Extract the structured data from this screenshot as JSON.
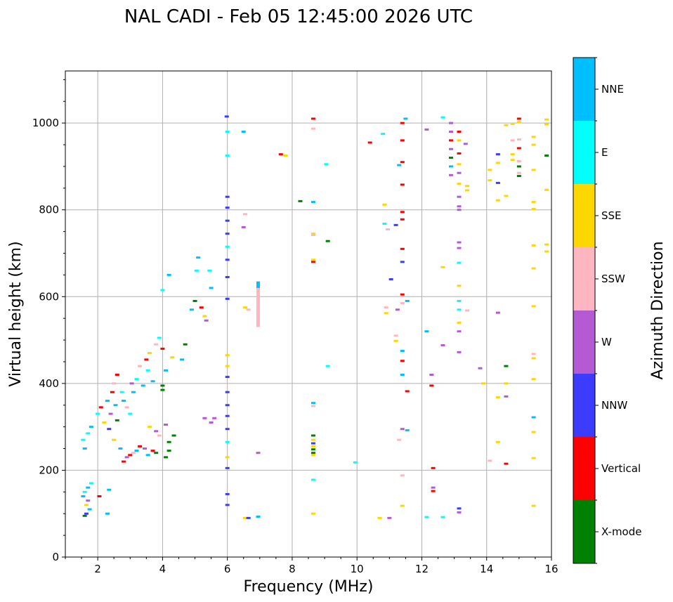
{
  "chart_data": {
    "type": "scatter",
    "title": "NAL CADI - Feb 05 12:45:00 2026 UTC",
    "xlabel": "Frequency (MHz)",
    "ylabel": "Virtual height (km)",
    "xlim": [
      1,
      16
    ],
    "ylim": [
      0,
      1120
    ],
    "x_ticks": [
      "2",
      "4",
      "6",
      "8",
      "10",
      "12",
      "14",
      "16"
    ],
    "y_ticks": [
      "0",
      "200",
      "400",
      "600",
      "800",
      "1000"
    ],
    "grid": true,
    "colorbar": {
      "label": "Azimuth Direction",
      "categories": [
        {
          "name": "X-mode",
          "color": "#008000"
        },
        {
          "name": "Vertical",
          "color": "#ff0000"
        },
        {
          "name": "NNW",
          "color": "#3c3cff"
        },
        {
          "name": "W",
          "color": "#b45ad2"
        },
        {
          "name": "SSW",
          "color": "#ffb6c1"
        },
        {
          "name": "SSE",
          "color": "#ffd700"
        },
        {
          "name": "E",
          "color": "#00ffff"
        },
        {
          "name": "NNE",
          "color": "#00bfff"
        }
      ]
    },
    "points": [
      [
        1.55,
        140,
        "NNE"
      ],
      [
        1.6,
        150,
        "E"
      ],
      [
        1.65,
        120,
        "SSE"
      ],
      [
        1.7,
        160,
        "NNE"
      ],
      [
        1.6,
        95,
        "X-mode"
      ],
      [
        1.75,
        110,
        "NNE"
      ],
      [
        1.8,
        170,
        "E"
      ],
      [
        1.7,
        130,
        "W"
      ],
      [
        1.65,
        100,
        "NNW"
      ],
      [
        1.55,
        270,
        "E"
      ],
      [
        1.6,
        250,
        "NNE"
      ],
      [
        1.7,
        285,
        "E"
      ],
      [
        1.8,
        300,
        "NNE"
      ],
      [
        2.05,
        140,
        "Vertical"
      ],
      [
        2.3,
        100,
        "NNE"
      ],
      [
        2.35,
        155,
        "NNE"
      ],
      [
        2.0,
        330,
        "E"
      ],
      [
        2.1,
        345,
        "Vertical"
      ],
      [
        2.2,
        310,
        "SSE"
      ],
      [
        2.3,
        360,
        "NNE"
      ],
      [
        2.35,
        295,
        "NNW"
      ],
      [
        2.4,
        330,
        "W"
      ],
      [
        2.45,
        380,
        "Vertical"
      ],
      [
        2.5,
        400,
        "SSW"
      ],
      [
        2.55,
        350,
        "NNE"
      ],
      [
        2.6,
        420,
        "Vertical"
      ],
      [
        2.6,
        315,
        "X-mode"
      ],
      [
        2.5,
        270,
        "SSE"
      ],
      [
        2.7,
        250,
        "NNE"
      ],
      [
        2.75,
        380,
        "E"
      ],
      [
        2.8,
        360,
        "NNE"
      ],
      [
        2.9,
        345,
        "SSW"
      ],
      [
        3.0,
        330,
        "E"
      ],
      [
        3.05,
        400,
        "W"
      ],
      [
        3.1,
        380,
        "NNE"
      ],
      [
        3.2,
        410,
        "E"
      ],
      [
        3.3,
        440,
        "SSW"
      ],
      [
        3.4,
        395,
        "NNE"
      ],
      [
        3.5,
        455,
        "Vertical"
      ],
      [
        3.55,
        430,
        "E"
      ],
      [
        3.6,
        470,
        "SSE"
      ],
      [
        3.7,
        405,
        "NNE"
      ],
      [
        3.8,
        490,
        "SSW"
      ],
      [
        3.9,
        505,
        "E"
      ],
      [
        4.0,
        480,
        "Vertical"
      ],
      [
        4.1,
        430,
        "NNE"
      ],
      [
        4.3,
        460,
        "SSE"
      ],
      [
        2.8,
        220,
        "Vertical"
      ],
      [
        2.9,
        230,
        "W"
      ],
      [
        3.0,
        235,
        "Vertical"
      ],
      [
        3.1,
        240,
        "SSW"
      ],
      [
        3.2,
        245,
        "NNE"
      ],
      [
        3.3,
        255,
        "Vertical"
      ],
      [
        3.45,
        250,
        "W"
      ],
      [
        3.55,
        235,
        "NNE"
      ],
      [
        3.7,
        245,
        "Vertical"
      ],
      [
        3.8,
        240,
        "X-mode"
      ],
      [
        4.1,
        230,
        "X-mode"
      ],
      [
        4.2,
        245,
        "X-mode"
      ],
      [
        4.0,
        385,
        "X-mode"
      ],
      [
        4.0,
        395,
        "X-mode"
      ],
      [
        3.8,
        290,
        "W"
      ],
      [
        3.6,
        300,
        "SSE"
      ],
      [
        3.9,
        280,
        "SSW"
      ],
      [
        4.1,
        305,
        "W"
      ],
      [
        4.35,
        280,
        "X-mode"
      ],
      [
        4.2,
        265,
        "X-mode"
      ],
      [
        4.6,
        455,
        "NNE"
      ],
      [
        4.7,
        490,
        "X-mode"
      ],
      [
        4.9,
        570,
        "NNE"
      ],
      [
        5.0,
        590,
        "X-mode"
      ],
      [
        5.05,
        660,
        "E"
      ],
      [
        5.1,
        690,
        "NNE"
      ],
      [
        5.2,
        575,
        "Vertical"
      ],
      [
        5.3,
        555,
        "SSE"
      ],
      [
        5.35,
        545,
        "W"
      ],
      [
        5.5,
        620,
        "NNE"
      ],
      [
        5.45,
        660,
        "E"
      ],
      [
        5.3,
        320,
        "W"
      ],
      [
        5.5,
        310,
        "W"
      ],
      [
        5.6,
        320,
        "W"
      ],
      [
        4.2,
        650,
        "NNE"
      ],
      [
        4.0,
        615,
        "E"
      ],
      [
        5.98,
        1015,
        "NNW"
      ],
      [
        6.0,
        980,
        "E"
      ],
      [
        6.0,
        925,
        "E"
      ],
      [
        6.0,
        830,
        "NNW"
      ],
      [
        6.0,
        805,
        "NNW"
      ],
      [
        6.0,
        775,
        "NNW"
      ],
      [
        6.0,
        745,
        "NNW"
      ],
      [
        6.0,
        715,
        "E"
      ],
      [
        6.0,
        685,
        "NNW"
      ],
      [
        6.0,
        645,
        "NNW"
      ],
      [
        6.0,
        595,
        "NNW"
      ],
      [
        6.0,
        465,
        "SSE"
      ],
      [
        6.0,
        440,
        "SSE"
      ],
      [
        6.0,
        415,
        "NNW"
      ],
      [
        6.0,
        380,
        "NNW"
      ],
      [
        6.0,
        350,
        "NNW"
      ],
      [
        6.0,
        325,
        "NNW"
      ],
      [
        6.0,
        295,
        "NNW"
      ],
      [
        6.0,
        265,
        "E"
      ],
      [
        6.0,
        230,
        "SSE"
      ],
      [
        6.0,
        205,
        "NNW"
      ],
      [
        6.0,
        145,
        "NNW"
      ],
      [
        6.0,
        120,
        "NNW"
      ],
      [
        6.5,
        980,
        "NNE"
      ],
      [
        6.55,
        790,
        "SSW"
      ],
      [
        6.5,
        760,
        "W"
      ],
      [
        6.55,
        575,
        "SSE"
      ],
      [
        6.65,
        570,
        "SSW"
      ],
      [
        6.55,
        90,
        "SSE"
      ],
      [
        6.65,
        90,
        "NNW"
      ],
      [
        6.95,
        240,
        "W"
      ],
      [
        6.95,
        93,
        "NNE"
      ],
      [
        7.65,
        928,
        "Vertical"
      ],
      [
        7.8,
        925,
        "SSE"
      ],
      [
        8.25,
        820,
        "X-mode"
      ],
      [
        8.65,
        1010,
        "Vertical"
      ],
      [
        8.65,
        987,
        "SSW"
      ],
      [
        8.65,
        818,
        "NNE"
      ],
      [
        8.65,
        745,
        "SSE"
      ],
      [
        8.65,
        742,
        "SSW"
      ],
      [
        8.65,
        685,
        "SSE"
      ],
      [
        8.65,
        680,
        "Vertical"
      ],
      [
        8.65,
        355,
        "NNE"
      ],
      [
        8.65,
        348,
        "SSW"
      ],
      [
        8.65,
        280,
        "X-mode"
      ],
      [
        8.65,
        270,
        "SSE"
      ],
      [
        8.65,
        262,
        "NNW"
      ],
      [
        8.65,
        255,
        "SSE"
      ],
      [
        8.65,
        248,
        "X-mode"
      ],
      [
        8.65,
        240,
        "X-mode"
      ],
      [
        8.65,
        235,
        "SSE"
      ],
      [
        8.65,
        178,
        "E"
      ],
      [
        8.65,
        100,
        "SSE"
      ],
      [
        9.05,
        905,
        "E"
      ],
      [
        9.1,
        728,
        "X-mode"
      ],
      [
        9.1,
        440,
        "E"
      ],
      [
        9.95,
        218,
        "E"
      ],
      [
        10.4,
        955,
        "Vertical"
      ],
      [
        10.8,
        975,
        "E"
      ],
      [
        10.85,
        812,
        "SSE"
      ],
      [
        10.85,
        768,
        "E"
      ],
      [
        10.95,
        755,
        "SSW"
      ],
      [
        10.9,
        575,
        "SSW"
      ],
      [
        10.9,
        562,
        "SSE"
      ],
      [
        11.05,
        640,
        "NNW"
      ],
      [
        11.2,
        765,
        "NNW"
      ],
      [
        11.2,
        498,
        "SSE"
      ],
      [
        11.3,
        903,
        "NNE"
      ],
      [
        11.4,
        1000,
        "Vertical"
      ],
      [
        11.4,
        960,
        "Vertical"
      ],
      [
        11.4,
        910,
        "Vertical"
      ],
      [
        11.4,
        858,
        "Vertical"
      ],
      [
        11.4,
        795,
        "Vertical"
      ],
      [
        11.4,
        778,
        "Vertical"
      ],
      [
        11.4,
        710,
        "Vertical"
      ],
      [
        11.4,
        680,
        "NNW"
      ],
      [
        11.4,
        605,
        "Vertical"
      ],
      [
        11.4,
        585,
        "SSW"
      ],
      [
        11.4,
        475,
        "NNE"
      ],
      [
        11.4,
        452,
        "Vertical"
      ],
      [
        11.4,
        420,
        "NNE"
      ],
      [
        11.4,
        295,
        "W"
      ],
      [
        11.4,
        188,
        "SSW"
      ],
      [
        11.4,
        118,
        "SSE"
      ],
      [
        11.25,
        570,
        "W"
      ],
      [
        11.2,
        510,
        "SSW"
      ],
      [
        10.7,
        90,
        "SSE"
      ],
      [
        11.0,
        90,
        "W"
      ],
      [
        11.5,
        1010,
        "NNE"
      ],
      [
        11.55,
        590,
        "NNE"
      ],
      [
        11.55,
        382,
        "Vertical"
      ],
      [
        11.55,
        292,
        "NNE"
      ],
      [
        11.3,
        270,
        "SSW"
      ],
      [
        12.15,
        985,
        "W"
      ],
      [
        12.15,
        520,
        "NNE"
      ],
      [
        12.15,
        92,
        "E"
      ],
      [
        12.3,
        420,
        "W"
      ],
      [
        12.3,
        395,
        "Vertical"
      ],
      [
        12.35,
        205,
        "Vertical"
      ],
      [
        12.35,
        160,
        "W"
      ],
      [
        12.35,
        152,
        "Vertical"
      ],
      [
        12.65,
        1013,
        "E"
      ],
      [
        12.65,
        668,
        "SSE"
      ],
      [
        12.65,
        488,
        "W"
      ],
      [
        12.65,
        92,
        "E"
      ],
      [
        12.9,
        1000,
        "W"
      ],
      [
        12.9,
        980,
        "W"
      ],
      [
        12.9,
        960,
        "Vertical"
      ],
      [
        12.9,
        940,
        "W"
      ],
      [
        12.9,
        920,
        "X-mode"
      ],
      [
        12.9,
        900,
        "NNE"
      ],
      [
        12.9,
        880,
        "W"
      ],
      [
        13.15,
        980,
        "Vertical"
      ],
      [
        13.15,
        960,
        "SSE"
      ],
      [
        13.15,
        930,
        "Vertical"
      ],
      [
        13.15,
        905,
        "SSE"
      ],
      [
        13.15,
        885,
        "W"
      ],
      [
        13.15,
        860,
        "SSE"
      ],
      [
        13.15,
        830,
        "W"
      ],
      [
        13.15,
        808,
        "W"
      ],
      [
        13.15,
        800,
        "W"
      ],
      [
        13.15,
        725,
        "W"
      ],
      [
        13.15,
        712,
        "W"
      ],
      [
        13.15,
        678,
        "E"
      ],
      [
        13.15,
        625,
        "SSE"
      ],
      [
        13.15,
        590,
        "E"
      ],
      [
        13.15,
        570,
        "E"
      ],
      [
        13.15,
        540,
        "SSE"
      ],
      [
        13.15,
        520,
        "W"
      ],
      [
        13.15,
        472,
        "W"
      ],
      [
        13.15,
        112,
        "NNW"
      ],
      [
        13.15,
        103,
        "W"
      ],
      [
        13.35,
        952,
        "W"
      ],
      [
        13.4,
        855,
        "SSE"
      ],
      [
        13.4,
        845,
        "SSE"
      ],
      [
        13.4,
        568,
        "SSW"
      ],
      [
        13.8,
        435,
        "W"
      ],
      [
        13.9,
        400,
        "SSE"
      ],
      [
        14.1,
        892,
        "SSE"
      ],
      [
        14.1,
        868,
        "SSE"
      ],
      [
        14.1,
        222,
        "SSW"
      ],
      [
        14.35,
        928,
        "NNW"
      ],
      [
        14.35,
        908,
        "SSE"
      ],
      [
        14.35,
        862,
        "NNW"
      ],
      [
        14.35,
        822,
        "SSE"
      ],
      [
        14.35,
        563,
        "W"
      ],
      [
        14.35,
        368,
        "SSE"
      ],
      [
        14.35,
        265,
        "SSE"
      ],
      [
        14.6,
        995,
        "SSE"
      ],
      [
        14.6,
        832,
        "SSE"
      ],
      [
        14.6,
        440,
        "X-mode"
      ],
      [
        14.6,
        400,
        "SSE"
      ],
      [
        14.6,
        370,
        "W"
      ],
      [
        14.6,
        215,
        "Vertical"
      ],
      [
        14.8,
        998,
        "SSE"
      ],
      [
        14.8,
        960,
        "SSW"
      ],
      [
        14.8,
        928,
        "SSE"
      ],
      [
        14.8,
        915,
        "SSE"
      ],
      [
        15.0,
        1010,
        "Vertical"
      ],
      [
        15.0,
        1002,
        "SSE"
      ],
      [
        15.0,
        962,
        "SSW"
      ],
      [
        15.0,
        942,
        "Vertical"
      ],
      [
        15.0,
        912,
        "SSW"
      ],
      [
        15.0,
        900,
        "X-mode"
      ],
      [
        15.0,
        885,
        "SSW"
      ],
      [
        15.0,
        878,
        "X-mode"
      ],
      [
        15.45,
        968,
        "SSE"
      ],
      [
        15.45,
        950,
        "SSE"
      ],
      [
        15.45,
        892,
        "SSE"
      ],
      [
        15.45,
        818,
        "SSE"
      ],
      [
        15.45,
        802,
        "SSE"
      ],
      [
        15.45,
        718,
        "SSE"
      ],
      [
        15.45,
        665,
        "SSE"
      ],
      [
        15.45,
        578,
        "SSE"
      ],
      [
        15.45,
        468,
        "SSW"
      ],
      [
        15.45,
        458,
        "SSE"
      ],
      [
        15.45,
        410,
        "SSE"
      ],
      [
        15.45,
        322,
        "NNE"
      ],
      [
        15.45,
        288,
        "SSE"
      ],
      [
        15.45,
        228,
        "SSE"
      ],
      [
        15.45,
        118,
        "SSE"
      ],
      [
        15.85,
        1008,
        "SSE"
      ],
      [
        15.85,
        997,
        "SSE"
      ],
      [
        15.85,
        925,
        "X-mode"
      ],
      [
        15.85,
        846,
        "SSE"
      ],
      [
        15.85,
        720,
        "SSE"
      ],
      [
        15.85,
        704,
        "SSE"
      ]
    ],
    "stacks": [
      {
        "x": 6.95,
        "y_from": 530,
        "y_to": 620,
        "category": "SSW"
      },
      {
        "x": 6.95,
        "y_from": 620,
        "y_to": 635,
        "category": "NNE"
      }
    ]
  }
}
